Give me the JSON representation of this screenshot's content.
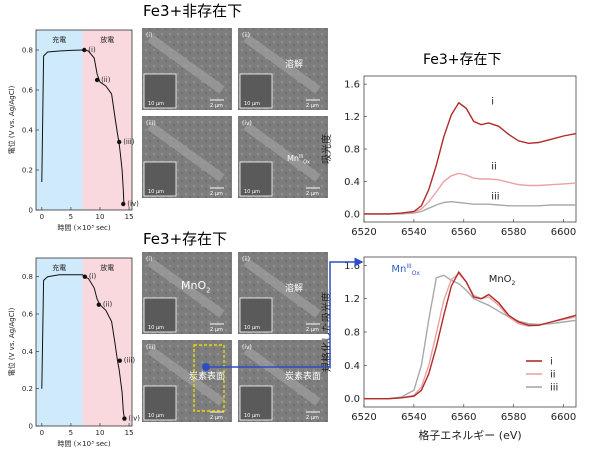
{
  "headings": {
    "top": "Fe3+非存在下",
    "bottom": "Fe3+存在下",
    "xas_top": "Fe3+存在下"
  },
  "electrochem": {
    "charge_label": "充電",
    "discharge_label": "放電",
    "ylabel": "電位 (V vs. Ag/AgCl)",
    "xlabel": "時間 (×10³ sec)",
    "yticks": [
      "0",
      "0.2",
      "0.4",
      "0.6",
      "0.8"
    ],
    "xticks": [
      "0",
      "5",
      "10",
      "15"
    ],
    "point_labels": [
      "(i)",
      "(ii)",
      "(iii)",
      "(iv)"
    ],
    "region_colors": {
      "charge": "#cfeafa",
      "discharge": "#f9d9dd"
    }
  },
  "sem": {
    "top": [
      {
        "label": "(i)",
        "text": "",
        "scale_inset": "10 µm",
        "scale_main": "2 µm"
      },
      {
        "label": "(ii)",
        "text": "溶解",
        "scale_inset": "10 µm",
        "scale_main": "2 µm"
      },
      {
        "label": "(iii)",
        "text": "",
        "scale_inset": "10 µm",
        "scale_main": "2 µm"
      },
      {
        "label": "(iv)",
        "text": "MnIIIOx",
        "scale_inset": "10 µm",
        "scale_main": "2 µm"
      }
    ],
    "bottom": [
      {
        "label": "(i)",
        "text": "MnO2",
        "scale_inset": "10 µm",
        "scale_main": "2 µm"
      },
      {
        "label": "(ii)",
        "text": "溶解",
        "scale_inset": "10 µm",
        "scale_main": "2 µm"
      },
      {
        "label": "(iii)",
        "text": "炭素表面",
        "scale_inset": "10 µm",
        "scale_main": "2 µm"
      },
      {
        "label": "(iv)",
        "text": "炭素表面",
        "scale_inset": "10 µm",
        "scale_main": "2 µm"
      }
    ]
  },
  "chart_data": [
    {
      "type": "line",
      "xlabel": "時間 (×10³ sec)",
      "ylabel": "電位 (V vs. Ag/AgCl)",
      "xlim": [
        -1,
        15.5
      ],
      "ylim": [
        0,
        0.9
      ],
      "x": [
        0,
        0.3,
        1,
        3,
        5,
        7,
        7.3,
        8,
        9,
        9.5,
        10,
        11,
        12,
        12.5,
        13,
        13.3,
        13.5,
        13.8,
        14,
        14.1
      ],
      "y": [
        0.14,
        0.77,
        0.79,
        0.795,
        0.798,
        0.8,
        0.8,
        0.795,
        0.76,
        0.68,
        0.64,
        0.62,
        0.58,
        0.48,
        0.38,
        0.33,
        0.28,
        0.2,
        0.1,
        0.03
      ],
      "points": [
        {
          "label": "(i)",
          "x": 7.3,
          "y": 0.8
        },
        {
          "label": "(ii)",
          "x": 9.5,
          "y": 0.65
        },
        {
          "label": "(iii)",
          "x": 13.3,
          "y": 0.34
        },
        {
          "label": "(iv)",
          "x": 14,
          "y": 0.03
        }
      ]
    },
    {
      "type": "line",
      "xlabel": "時間 (×10³ sec)",
      "ylabel": "電位 (V vs. Ag/AgCl)",
      "xlim": [
        -1,
        15.5
      ],
      "ylim": [
        0,
        0.9
      ],
      "x": [
        0,
        0.3,
        1,
        3,
        5,
        7,
        7.3,
        8,
        9,
        9.5,
        10,
        11,
        12,
        12.5,
        13,
        13.3,
        13.8,
        14,
        14.2
      ],
      "y": [
        0.2,
        0.78,
        0.8,
        0.81,
        0.81,
        0.81,
        0.8,
        0.79,
        0.74,
        0.68,
        0.65,
        0.62,
        0.56,
        0.46,
        0.35,
        0.3,
        0.18,
        0.08,
        0.04
      ],
      "points": [
        {
          "label": "(i)",
          "x": 7.4,
          "y": 0.8
        },
        {
          "label": "(ii)",
          "x": 9.8,
          "y": 0.65
        },
        {
          "label": "(iii)",
          "x": 13.4,
          "y": 0.35
        },
        {
          "label": "(iv)",
          "x": 14.2,
          "y": 0.04
        }
      ]
    },
    {
      "type": "line",
      "title": "Fe3+存在下",
      "ylabel": "吸光度",
      "xlim": [
        6520,
        6605
      ],
      "ylim": [
        -0.1,
        1.7
      ],
      "xticks": [
        6520,
        6540,
        6560,
        6580,
        6600
      ],
      "yticks": [
        0.0,
        0.4,
        0.8,
        1.2,
        1.6
      ],
      "series": [
        {
          "name": "i",
          "color": "#b22a2a",
          "x": [
            6520,
            6530,
            6535,
            6540,
            6543,
            6546,
            6549,
            6552,
            6555,
            6558,
            6561,
            6564,
            6567,
            6570,
            6574,
            6578,
            6582,
            6586,
            6590,
            6595,
            6600,
            6605
          ],
          "y": [
            0.0,
            0.0,
            0.01,
            0.03,
            0.1,
            0.3,
            0.6,
            0.95,
            1.22,
            1.37,
            1.3,
            1.14,
            1.1,
            1.12,
            1.08,
            0.98,
            0.9,
            0.87,
            0.88,
            0.92,
            0.96,
            0.99
          ]
        },
        {
          "name": "ii",
          "color": "#e9a3a3",
          "x": [
            6520,
            6530,
            6535,
            6540,
            6543,
            6546,
            6549,
            6552,
            6555,
            6558,
            6561,
            6564,
            6567,
            6570,
            6574,
            6578,
            6582,
            6586,
            6590,
            6595,
            6600,
            6605
          ],
          "y": [
            0.0,
            0.0,
            0.01,
            0.02,
            0.06,
            0.15,
            0.27,
            0.4,
            0.47,
            0.5,
            0.48,
            0.44,
            0.43,
            0.43,
            0.42,
            0.39,
            0.36,
            0.35,
            0.35,
            0.36,
            0.37,
            0.38
          ]
        },
        {
          "name": "iii",
          "color": "#a9a9a9",
          "x": [
            6520,
            6530,
            6535,
            6540,
            6543,
            6546,
            6549,
            6552,
            6555,
            6558,
            6561,
            6564,
            6567,
            6570,
            6574,
            6578,
            6582,
            6586,
            6590,
            6595,
            6600,
            6605
          ],
          "y": [
            0.0,
            0.0,
            0.0,
            0.01,
            0.03,
            0.07,
            0.11,
            0.14,
            0.15,
            0.14,
            0.13,
            0.12,
            0.12,
            0.12,
            0.11,
            0.1,
            0.1,
            0.1,
            0.1,
            0.11,
            0.11,
            0.11
          ]
        }
      ],
      "labels": [
        {
          "text": "i",
          "x": 6571,
          "y": 1.35
        },
        {
          "text": "ii",
          "x": 6571,
          "y": 0.55
        },
        {
          "text": "iii",
          "x": 6571,
          "y": 0.18
        }
      ]
    },
    {
      "type": "line",
      "ylabel": "規格化した吸光度",
      "xlabel": "格子エネルギー (eV)",
      "xlim": [
        6520,
        6605
      ],
      "ylim": [
        -0.1,
        1.7
      ],
      "xticks": [
        6520,
        6540,
        6560,
        6580,
        6600
      ],
      "yticks": [
        0.0,
        0.4,
        0.8,
        1.2,
        1.6
      ],
      "series": [
        {
          "name": "i",
          "color": "#b22a2a",
          "x": [
            6520,
            6530,
            6535,
            6540,
            6543,
            6546,
            6549,
            6552,
            6555,
            6558,
            6561,
            6564,
            6567,
            6570,
            6574,
            6578,
            6582,
            6586,
            6590,
            6595,
            6600,
            6605
          ],
          "y": [
            0.0,
            0.0,
            0.01,
            0.03,
            0.1,
            0.3,
            0.62,
            1.0,
            1.35,
            1.52,
            1.4,
            1.22,
            1.2,
            1.25,
            1.15,
            1.0,
            0.92,
            0.88,
            0.88,
            0.92,
            0.96,
            1.0
          ]
        },
        {
          "name": "ii",
          "color": "#e9a3a3",
          "x": [
            6520,
            6530,
            6535,
            6540,
            6543,
            6546,
            6549,
            6552,
            6555,
            6558,
            6561,
            6564,
            6567,
            6570,
            6574,
            6578,
            6582,
            6586,
            6590,
            6595,
            6600,
            6605
          ],
          "y": [
            0.0,
            0.0,
            0.01,
            0.04,
            0.14,
            0.4,
            0.78,
            1.18,
            1.43,
            1.5,
            1.4,
            1.24,
            1.2,
            1.22,
            1.12,
            0.98,
            0.9,
            0.87,
            0.88,
            0.92,
            0.95,
            0.98
          ]
        },
        {
          "name": "iii",
          "color": "#a9a9a9",
          "x": [
            6520,
            6530,
            6535,
            6540,
            6543,
            6546,
            6549,
            6552,
            6555,
            6558,
            6561,
            6564,
            6567,
            6570,
            6574,
            6578,
            6582,
            6586,
            6590,
            6595,
            6600,
            6605
          ],
          "y": [
            0.0,
            0.0,
            0.02,
            0.1,
            0.4,
            0.95,
            1.45,
            1.48,
            1.42,
            1.38,
            1.3,
            1.2,
            1.16,
            1.12,
            1.05,
            0.98,
            0.93,
            0.9,
            0.89,
            0.9,
            0.92,
            0.94
          ]
        }
      ],
      "annotations": [
        {
          "text": "MnIIIOx",
          "x": 6531,
          "y": 1.52,
          "color": "#3060c8"
        },
        {
          "text": "MnO2",
          "x": 6570,
          "y": 1.4,
          "color": "#222222"
        }
      ],
      "legend": {
        "position": "bottom-right",
        "items": [
          "i",
          "ii",
          "iii"
        ]
      }
    }
  ]
}
